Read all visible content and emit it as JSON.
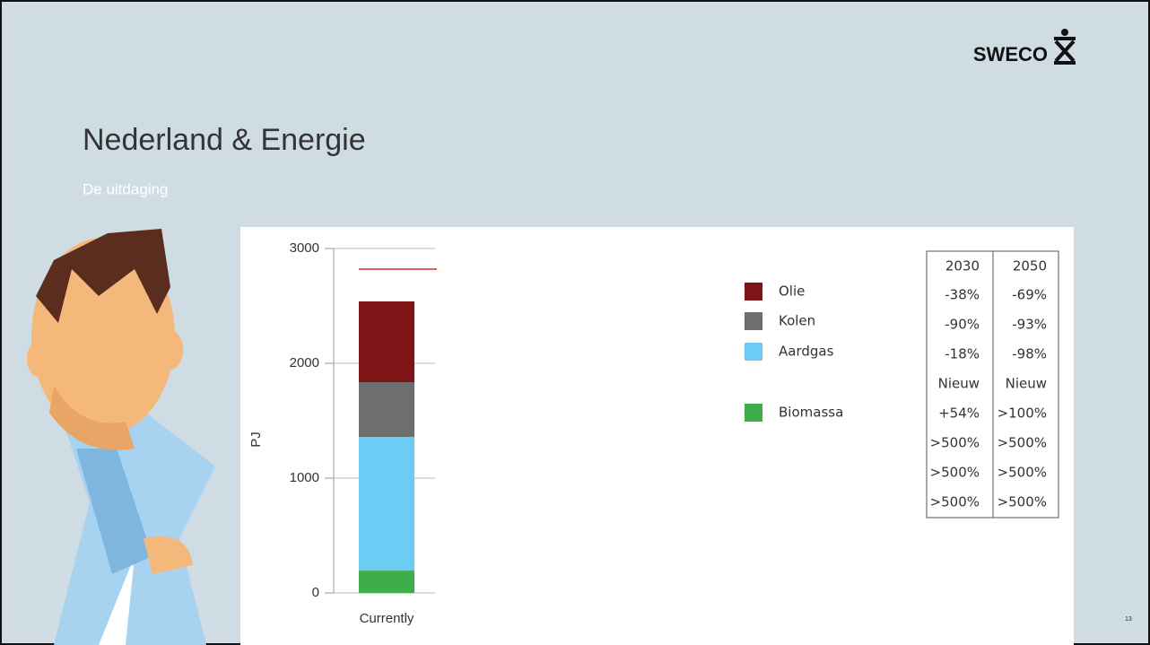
{
  "header": {
    "logo": "SWECO",
    "title": "Nederland & Energie",
    "subtitle": "De uitdaging",
    "page_number": "13"
  },
  "chart_data": {
    "type": "bar",
    "stacked": true,
    "ylabel": "PJ",
    "categories": [
      "Currently"
    ],
    "series": [
      {
        "name": "Olie",
        "color": "#7e1416",
        "values": [
          703
        ]
      },
      {
        "name": "Kolen",
        "color": "#6d6e70",
        "values": [
          477
        ]
      },
      {
        "name": "Aardgas",
        "color": "#6ccdf4",
        "values": [
          1164
        ]
      },
      {
        "name": "Biomassa",
        "color": "#3fae4a",
        "values": [
          195
        ]
      }
    ],
    "reference_line": {
      "value": 2820,
      "color": "#e06060"
    },
    "ylim": [
      0,
      3000
    ],
    "yticks": [
      0,
      1000,
      2000,
      3000
    ],
    "grid": true
  },
  "table": {
    "header": [
      "2030",
      "2050"
    ],
    "rows": [
      [
        "-38%",
        "-69%"
      ],
      [
        "-90%",
        "-93%"
      ],
      [
        "-18%",
        "-98%"
      ],
      [
        "Nieuw",
        "Nieuw"
      ],
      [
        "+54%",
        ">100%"
      ],
      [
        ">500%",
        ">500%"
      ],
      [
        ">500%",
        ">500%"
      ],
      [
        ">500%",
        ">500%"
      ]
    ]
  }
}
